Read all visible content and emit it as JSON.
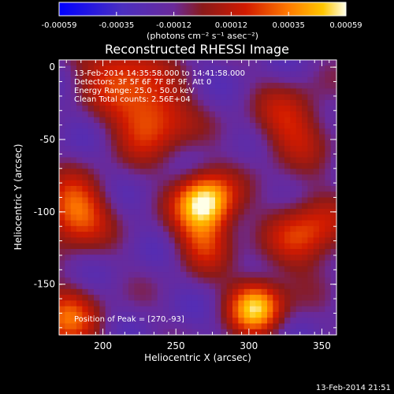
{
  "chart_data": {
    "type": "heatmap",
    "title": "Reconstructed RHESSI Image",
    "xlabel": "Heliocentric X (arcsec)",
    "ylabel": "Heliocentric Y (arcsec)",
    "xlim": [
      170,
      360
    ],
    "ylim": [
      -185,
      5
    ],
    "x_ticks": [
      200,
      250,
      300,
      350
    ],
    "y_ticks": [
      0,
      -50,
      -100,
      -150
    ],
    "colorbar": {
      "label": "(photons cm⁻² s⁻¹ asec⁻²)",
      "range": [
        -0.00059,
        0.00059
      ],
      "ticks": [
        "-0.00059",
        "-0.00035",
        "-0.00012",
        "0.00012",
        "0.00035",
        "0.00059"
      ]
    },
    "annotations": [
      "13-Feb-2014 14:35:58.000 to 14:41:58.000",
      "Detectors: 3F 5F 6F 7F 8F 9F, Att 0",
      "Energy Range: 25.0 - 50.0 keV",
      "Clean    Total counts: 2.56E+04"
    ],
    "peak_label": "Position of Peak = [270,-93]",
    "peak": [
      270,
      -93
    ],
    "sources": [
      {
        "x": 270,
        "y": -93,
        "amp": 1.0,
        "sigma": 14
      },
      {
        "x": 305,
        "y": -165,
        "amp": 0.9,
        "sigma": 13
      },
      {
        "x": 233,
        "y": -35,
        "amp": 0.65,
        "sigma": 18
      },
      {
        "x": 180,
        "y": -100,
        "amp": 0.7,
        "sigma": 16
      },
      {
        "x": 340,
        "y": -115,
        "amp": 0.55,
        "sigma": 18
      },
      {
        "x": 175,
        "y": -175,
        "amp": 0.55,
        "sigma": 16
      },
      {
        "x": 330,
        "y": -40,
        "amp": 0.45,
        "sigma": 18
      },
      {
        "x": 210,
        "y": 0,
        "amp": 0.5,
        "sigma": 18
      },
      {
        "x": 270,
        "y": -120,
        "amp": 0.45,
        "sigma": 14
      }
    ],
    "timestamp": "13-Feb-2014 21:51"
  }
}
